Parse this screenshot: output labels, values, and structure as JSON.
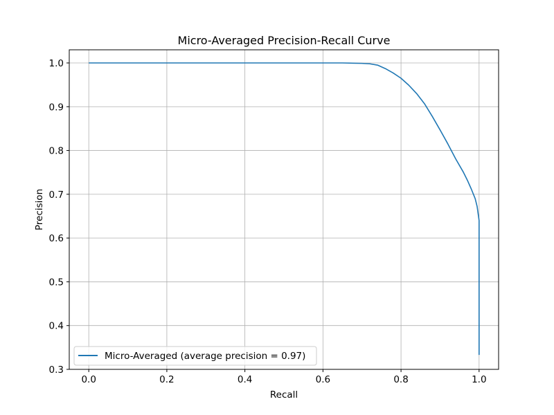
{
  "chart_data": {
    "type": "line",
    "title": "Micro-Averaged Precision-Recall Curve",
    "xlabel": "Recall",
    "ylabel": "Precision",
    "xlim": [
      -0.05,
      1.05
    ],
    "ylim": [
      0.3,
      1.03
    ],
    "x_ticks": [
      0.0,
      0.2,
      0.4,
      0.6,
      0.8,
      1.0
    ],
    "x_tick_labels": [
      "0.0",
      "0.2",
      "0.4",
      "0.6",
      "0.8",
      "1.0"
    ],
    "y_ticks": [
      0.3,
      0.4,
      0.5,
      0.6,
      0.7,
      0.8,
      0.9,
      1.0
    ],
    "y_tick_labels": [
      "0.3",
      "0.4",
      "0.5",
      "0.6",
      "0.7",
      "0.8",
      "0.9",
      "1.0"
    ],
    "grid": true,
    "legend_position": "lower-left",
    "series": [
      {
        "name": "Micro-Averaged (average precision = 0.97)",
        "color": "#1f77b4",
        "x": [
          0.0,
          0.1,
          0.2,
          0.3,
          0.4,
          0.5,
          0.6,
          0.65,
          0.7,
          0.72,
          0.74,
          0.76,
          0.78,
          0.8,
          0.82,
          0.84,
          0.86,
          0.88,
          0.9,
          0.92,
          0.94,
          0.96,
          0.97,
          0.98,
          0.99,
          0.995,
          1.0,
          1.0,
          1.0,
          1.0
        ],
        "y": [
          1.0,
          1.0,
          1.0,
          1.0,
          1.0,
          1.0,
          1.0,
          1.0,
          0.999,
          0.998,
          0.995,
          0.987,
          0.977,
          0.965,
          0.949,
          0.93,
          0.907,
          0.878,
          0.847,
          0.815,
          0.781,
          0.75,
          0.732,
          0.712,
          0.69,
          0.672,
          0.64,
          0.6,
          0.45,
          0.333
        ]
      }
    ]
  }
}
